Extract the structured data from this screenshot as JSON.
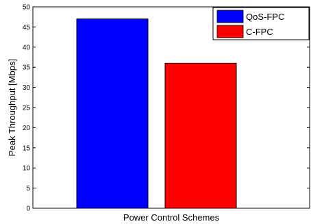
{
  "chart_data": {
    "type": "bar",
    "xlabel": "Power Control Schemes",
    "ylabel": "Peak Throughput [Mbps]",
    "ylim": [
      0,
      50
    ],
    "yticks": [
      0,
      5,
      10,
      15,
      20,
      25,
      30,
      35,
      40,
      45,
      50
    ],
    "grid": false,
    "legend_position": "top-right",
    "series": [
      {
        "name": "QoS-FPC",
        "value": 47,
        "color": "#0000ff"
      },
      {
        "name": "C-FPC",
        "value": 36,
        "color": "#ff0000"
      }
    ]
  }
}
